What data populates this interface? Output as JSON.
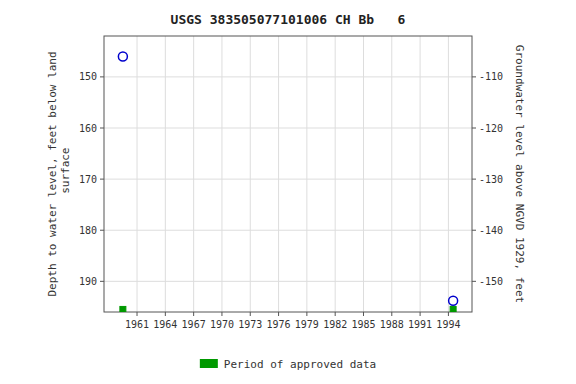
{
  "chart_data": {
    "type": "scatter",
    "title": "USGS 383505077101006 CH Bb   6",
    "ylabel": "Depth to water level, feet below land\n surface",
    "y2label": "Groundwater level above NGVD 1929, feet",
    "x": [
      1959.5,
      1994.5
    ],
    "series": [
      {
        "color": "#0000cc",
        "marker": "circle",
        "values": [
          146.0,
          193.8
        ]
      },
      {
        "name": "Period of approved data",
        "color": "#009900",
        "marker": "square",
        "values": [
          195.5,
          195.5
        ]
      }
    ],
    "xlim": [
      1957.5,
      1996.5
    ],
    "xticks": [
      1961,
      1964,
      1967,
      1970,
      1973,
      1976,
      1979,
      1982,
      1985,
      1988,
      1991,
      1994
    ],
    "ylim": [
      196,
      142
    ],
    "yticks": [
      150,
      160,
      170,
      180,
      190
    ],
    "y2lim": [
      -156,
      -102
    ],
    "y2ticks": [
      -110,
      -120,
      -130,
      -140,
      -150
    ],
    "grid": true,
    "legend": "bottom"
  }
}
